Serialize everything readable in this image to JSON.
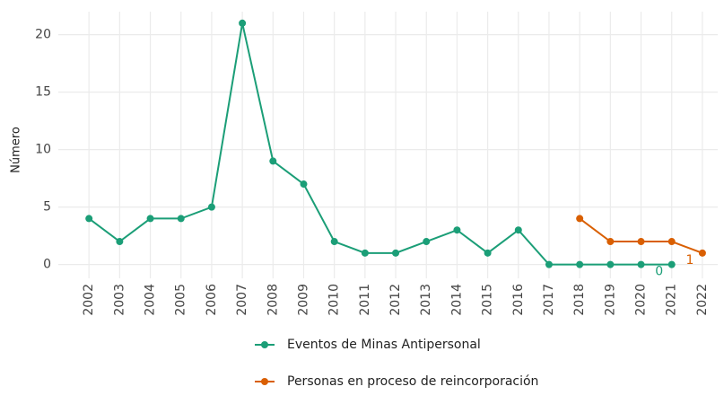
{
  "chart_data": {
    "type": "line",
    "ylabel": "Número",
    "x": [
      2002,
      2003,
      2004,
      2005,
      2006,
      2007,
      2008,
      2009,
      2010,
      2011,
      2012,
      2013,
      2014,
      2015,
      2016,
      2017,
      2018,
      2019,
      2020,
      2021,
      2022
    ],
    "series": [
      {
        "name": "Eventos de Minas Antipersonal",
        "color": "#1b9e77",
        "values": [
          4,
          2,
          4,
          4,
          5,
          21,
          9,
          7,
          2,
          1,
          1,
          2,
          3,
          1,
          3,
          0,
          0,
          0,
          0,
          0,
          null
        ],
        "value_labels": [
          null,
          null,
          null,
          null,
          null,
          null,
          null,
          null,
          null,
          null,
          null,
          null,
          null,
          null,
          null,
          null,
          null,
          null,
          null,
          "0",
          null
        ]
      },
      {
        "name": "Personas en proceso de reincorporación",
        "color": "#d95f02",
        "values": [
          null,
          null,
          null,
          null,
          null,
          null,
          null,
          null,
          null,
          null,
          null,
          null,
          null,
          null,
          null,
          null,
          4,
          2,
          2,
          2,
          1
        ],
        "value_labels": [
          null,
          null,
          null,
          null,
          null,
          null,
          null,
          null,
          null,
          null,
          null,
          null,
          null,
          null,
          null,
          null,
          null,
          null,
          null,
          null,
          "1"
        ]
      }
    ],
    "xlim": [
      2001,
      2022.5
    ],
    "xticks": [
      2002,
      2003,
      2004,
      2005,
      2006,
      2007,
      2008,
      2009,
      2010,
      2011,
      2012,
      2013,
      2014,
      2015,
      2016,
      2017,
      2018,
      2019,
      2020,
      2021,
      2022
    ],
    "ylim": [
      -1.2,
      22
    ],
    "yticks": [
      0,
      5,
      10,
      15,
      20
    ],
    "grid": true,
    "legend": "bottom"
  }
}
